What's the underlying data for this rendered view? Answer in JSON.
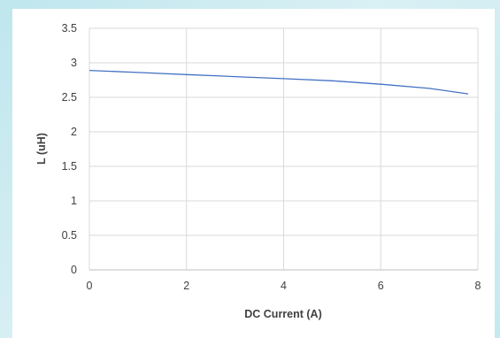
{
  "chart_data": {
    "type": "line",
    "title": "",
    "xlabel": "DC Current (A)",
    "ylabel": "L (uH)",
    "xlim": [
      0,
      8
    ],
    "ylim": [
      0,
      3.5
    ],
    "x_ticks": [
      "0",
      "2",
      "4",
      "6",
      "8"
    ],
    "y_ticks": [
      "0",
      "0.5",
      "1",
      "1.5",
      "2",
      "2.5",
      "3",
      "3.5"
    ],
    "grid": true,
    "legend": "none",
    "series": [
      {
        "color": "#4472c4",
        "x": [
          0,
          1,
          2,
          3,
          4,
          5,
          6,
          7,
          7.8
        ],
        "y": [
          2.89,
          2.86,
          2.83,
          2.8,
          2.77,
          2.74,
          2.69,
          2.63,
          2.55
        ]
      }
    ],
    "colors": {
      "grid": "#d9d9d9",
      "axis": "#bfbfbf",
      "text": "#404040",
      "line": "#4472c4"
    }
  }
}
